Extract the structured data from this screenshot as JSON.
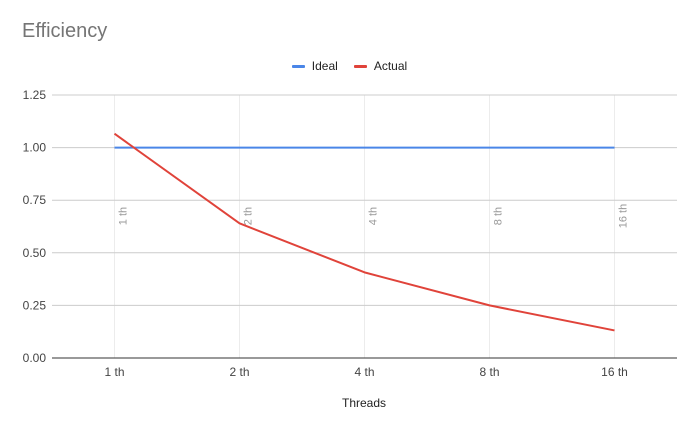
{
  "chart_data": {
    "type": "line",
    "title": "Efficiency",
    "xlabel": "Threads",
    "ylabel": "",
    "categories": [
      "1 th",
      "2 th",
      "4 th",
      "8 th",
      "16 th"
    ],
    "ylim": [
      0,
      1.25
    ],
    "yticks": [
      "0.00",
      "0.25",
      "0.50",
      "0.75",
      "1.00",
      "1.25"
    ],
    "grid": true,
    "legend_position": "top",
    "series": [
      {
        "name": "Ideal",
        "color": "#4a86e8",
        "values": [
          1.0,
          1.0,
          1.0,
          1.0,
          1.0
        ]
      },
      {
        "name": "Actual",
        "color": "#e0433a",
        "values": [
          1.066,
          0.64,
          0.407,
          0.25,
          0.131
        ]
      }
    ],
    "point_annotations": [
      "1 th",
      "2 th",
      "4 th",
      "8 th",
      "16 th"
    ]
  }
}
